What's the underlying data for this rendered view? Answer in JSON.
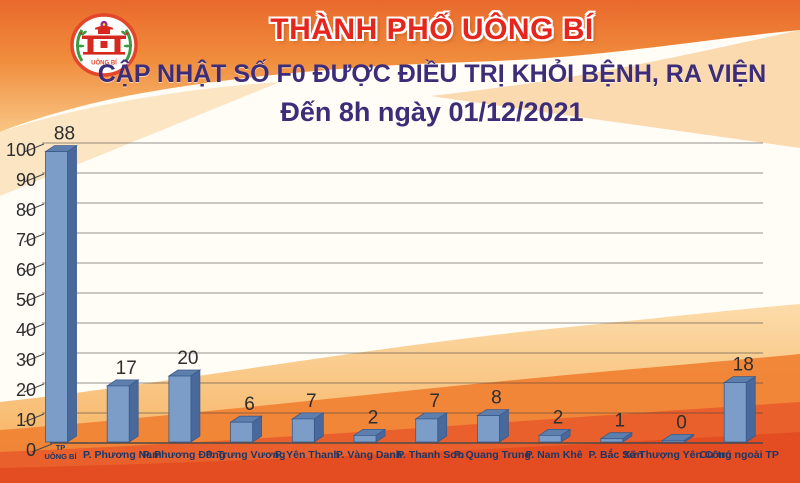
{
  "header": {
    "title": "THÀNH PHỐ UÔNG BÍ",
    "subtitle": "CẬP NHẬT SỐ F0 ĐƯỢC ĐIỀU TRỊ KHỎI BỆNH, RA VIỆN",
    "date_line": "Đến 8h ngày 01/12/2021",
    "logo": {
      "name": "uong-bi-city-emblem",
      "text": "UÔNG BÍ"
    }
  },
  "colors": {
    "title_red": "#e6251d",
    "subtitle_indigo": "#3d2c78",
    "bar_front": "#7d9dc9",
    "bar_side": "#49699d",
    "bar_top": "#5d7fae",
    "bar_outline": "#3c5a8a",
    "grid_line": "#5a5a5a",
    "axis_text": "#2d2d2d",
    "value_text": "#2e2e2e",
    "category_text": "#1c3766",
    "bg_orange_top": "#ee7c30",
    "bg_orange_bottom": "#e64d24"
  },
  "chart_data": {
    "type": "bar",
    "style": "3d-column",
    "title": "CẬP NHẬT SỐ F0 ĐƯỢC ĐIỀU TRỊ KHỎI BỆNH, RA VIỆN - Đến 8h ngày 01/12/2021",
    "categories": [
      "TP UÔNG BÍ",
      "P. Phương Nam",
      "P. Phương Đông",
      "P. Trưng Vương",
      "P. Yên Thanh",
      "P. Vàng Danh",
      "P. Thanh Sơn",
      "P. Quang Trung",
      "P. Nam Khê",
      "P. Bắc Sơn",
      "Xã Thượng Yên Công",
      "Cư trú ngoài TP"
    ],
    "values": [
      88,
      17,
      20,
      6,
      7,
      2,
      7,
      8,
      2,
      1,
      0,
      18
    ],
    "xlabel": "",
    "ylabel": "",
    "ylim": [
      0,
      100
    ],
    "yticks": [
      0,
      10,
      20,
      30,
      40,
      50,
      60,
      70,
      80,
      90,
      100
    ],
    "grid": true,
    "legend": "none"
  }
}
